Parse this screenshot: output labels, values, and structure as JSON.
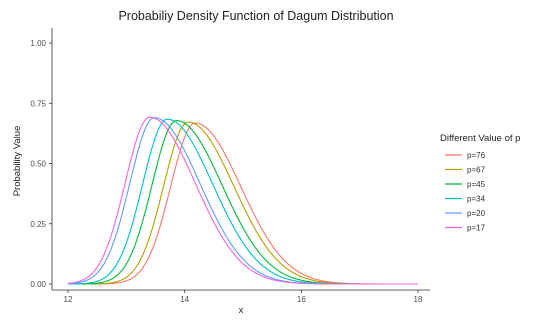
{
  "chart_data": {
    "type": "line",
    "title": "Probabiliy Density Function of Dagum Distribution",
    "xlabel": "x",
    "ylabel": "Probability Value",
    "xlim": [
      12,
      18
    ],
    "ylim": [
      0,
      1.0
    ],
    "x_ticks": [
      "12",
      "14",
      "16",
      "18"
    ],
    "x_tick_values": [
      12,
      14,
      16,
      18
    ],
    "y_ticks": [
      "0.00",
      "0.25",
      "0.50",
      "0.75",
      "1.00"
    ],
    "y_tick_values": [
      0,
      0.25,
      0.5,
      0.75,
      1.0
    ],
    "grid": false,
    "legend": {
      "title": "Different Value of p",
      "position": "right"
    },
    "series": [
      {
        "name": "p=76",
        "color": "#F8766D",
        "mode": 14.18,
        "peak": 0.668
      },
      {
        "name": "p=67",
        "color": "#B79F00",
        "mode": 14.06,
        "peak": 0.672
      },
      {
        "name": "p=45",
        "color": "#00BA38",
        "mode": 13.86,
        "peak": 0.678
      },
      {
        "name": "p=34",
        "color": "#00BFC4",
        "mode": 13.7,
        "peak": 0.684
      },
      {
        "name": "p=20",
        "color": "#619CFF",
        "mode": 13.48,
        "peak": 0.69
      },
      {
        "name": "p=17",
        "color": "#F564E3",
        "mode": 13.4,
        "peak": 0.692
      }
    ]
  }
}
